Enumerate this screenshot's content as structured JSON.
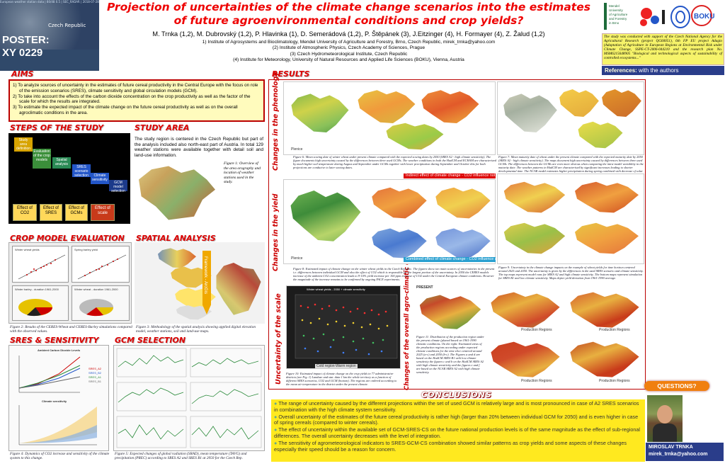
{
  "top_left": {
    "caption": "European weather station data | 80/48 0.5 | SEC_RADAR | 2018-07-28",
    "map_label": "Czech Republic",
    "poster_id": "POSTER: XY 0229"
  },
  "title": "Projection of uncertainties of the climate change scenarios into the estimates of future agroenvironmental conditions and crop yields?",
  "authors": "M. Trnka (1,2), M. Dubrovský (1,2), P. Hlavinka (1), D. Semerádová (1,2), P. Štěpánek (3), J.Eitzinger (4), H. Formayer (4), Z. Žalud (1,2)",
  "affiliations": [
    "1) Institute of Agrosystems and Bioclimatology, Mendel University of Agriculture and Forestry, Brno, Czech Republic, mirek_trnka@yahoo.com",
    "(2) Institute of Atmospheric Physics, Czech Academy of Sciences, Prague",
    "(3) Czech Hydrometeorological Institute, Czech Republic",
    "(4) Institute for Meteorology, University of Natural Resources and Applied Life Sciences (BOKU), Vienna, Austria"
  ],
  "logos": {
    "mendel": "Mendel University of Agriculture and Forestry in Brno",
    "boku": "BOKU"
  },
  "support_text": "The study was conducted with support of the Czech National Agency for the Agricultural Research (project QG60051), 6th FP EU project Adagio (Adaptation of Agriculture in European Regions at Environmental Risk under Climate Change, SSPE-CT-2006-044210 and the research plan No. MSM6215648905 \"Biological and technological aspects of sustainability of controlled ecosystems...\"",
  "references": {
    "label": "References:",
    "text": "with the authors"
  },
  "sections": {
    "aims": "AIMS",
    "steps": "STEPS OF THE STUDY",
    "area": "STUDY AREA",
    "crop": "CROP MODEL EVALUATION",
    "spatial": "SPATIAL ANALYSIS",
    "sres": "SRES & SENSITIVITY",
    "gcm": "GCM SELECTION",
    "results": "RESULTS",
    "conclusions": "CONCLUSIONS"
  },
  "aims": [
    "1) To analyze sources of uncertainty in the estimates of future cereal productivity in the Central Europe with the focus on role of the emission scenarios (SRES), climate sensitivity and global circulation models (GCM).",
    "2) To take into account the effects of the carbon dioxide concentration on the crop productivity as well as the factor of the scale for which the results are integrated.",
    "3) To estimate the expected impact of the climate change on the future cereal productivity as well as on the overall agroclimatic conditions in the area."
  ],
  "steps": {
    "blocks": [
      "Study area definition",
      "Evaluation of the crop models",
      "Spatial analysis",
      "SRES scenario selection",
      "Climate sensitivity",
      "GCM model selection"
    ],
    "effects": [
      "Effect of CO2",
      "Effect of SRES",
      "Effect of GCMs",
      "Effect of scale"
    ]
  },
  "study_area": {
    "text": "The study region is centered in the Czech Republic but part of the analysis included also north-east part of Austria. In total 129 weather stations were available together with detail soil and land-use information.",
    "figure_caption": "Figure 1: Overview of the area orography and location of weather stations used in the study."
  },
  "crop_model": {
    "caption": "Figure 2: Results of the CERES-Wheat and CERES-Barley simulations compared with the observed values.",
    "chart_titles": [
      "Winter wheat yields",
      "Spring barley yield",
      "Winter barley - duration 1961-2000",
      "Winter wheat - duration 1961-2000"
    ]
  },
  "spatial": {
    "caption": "Figure 3: Methodology of the spatial analysis showing applied digital elevation model, weather stations, soil and land-use maps.",
    "arrow_label": "Framework - ArcGis"
  },
  "sres": {
    "chart1_title": "Ambient Carbon Dioxide Levels",
    "chart2_title": "Climate sensitivity",
    "legend": [
      "SRES_A2",
      "SRES_B2",
      "SRES_A1",
      "SRES_B1"
    ],
    "caption": "Figure 4: Dynamics of CO2 increase and sensitivity of the climate system to this change."
  },
  "gcm": {
    "caption": "Figure 5: Expected changes of global radiation (SRAD), mean temperature (TAVG) and precipitation (PREC) according to SRES A2 and SRES B1 at 2050 for the Czech Rep."
  },
  "results": {
    "side_labels": [
      "Changes in the phenology",
      "Changes in the yield",
      "Uncertainty of the scale",
      "Changes of the overall agro-climatic contions"
    ],
    "map_footer": "Plenice",
    "bar_indirect": "Indirect effect of climate change - CO2 influence not accounted for",
    "bar_combined": "Combined effect of climate change - CO2 influence accounted for",
    "scale_chart_title": "Winter wheat yields - 2050 + climate sensitivity",
    "scale_legend": "Cold region-Warm region",
    "present_label": "PRESENT",
    "region_labels": [
      "Production Regions",
      "Production Regions",
      "Production Regions",
      "Production Regions"
    ],
    "captions": [
      "Figure 6: Mean sowing date of winter wheat under present climate compared with the expected sowing dates by 2050 (SRES A2 - high climate sensitivity). The figure documents high uncertainty caused by the differences between three used GCMs. The weather conditions in both the HadCM and ECHAM are characterized by much higher soil temperature during August and September under GCMs together with lower precipitation during September and October this for both projections are conducive to later sowing dates.",
      "Figure 7: Mean maturity date of wheat under the present climate compared with the expected maturity date by 2050 (SRES A2 - high climate sensitivity). The maps document high uncertainty caused by differences between three used GCMs. The differences between the GCMs are even more obvious when comparing the intra-model variability in the maturity date. The weather patterns in HadCM are characterised by significant increases leading to shorter developmental time. The NCAR model estimates higher precipitation during spring combined with decrease of solar radiation, which results into even longer developmental time than under the present climate.",
      "Figure 8: Estimated impact of climate change on the winter wheat yields in the Czech Republic. The figures show two main sources of uncertainties in the present i.e. differences between individual GCM and also the effect of CO2 which is responsible for the largest portion of the uncertainty. In 2050 the CERES models increase of the ambient CO2 concentration leads to 9-10% yield increase per 100 ppm increase of CO2 under the Central European climate conditions. However the magnitude of the increase remains to be confirmed by ongoing FACE experiments.",
      "Figure 9: Uncertainty in the climate change impacts on the example of wheat yields for time horizon centered around 2025 and 2050. The uncertainty is given by the differences in the used SRES scenario and climate sensitivity. The top maps represent model runs for SRES A2 and high climate sensitivity. The bottom maps represent simulation for SRES B1 and low climate sensitivity. Maps depict yield deviation from 1961-1990 average.",
      "Figure 10: Estimated impact of climate change on the crop yields in 77 administrative districts (see Fig. 1) Landuse and stat. data 1 km the whole territory as a function of different SRES scenarios, CO2 and GCM (bottom). The regions are ordered according to the mean air temperature in the district under the present climate.",
      "Figure 11: Distribution of the production region under the present climate (planed based on 1961-1990 climatic conditions. On the right: Estimated areas of the production regions according under expected climate conditions for the time slice centered around 2025 (a-c) and 2050 (b-c). The Figures a and d are based on the HadCM SRES B1 with low climate sensitivity the figures c and b on the HadCM SRES A2 with high climate sensitivity and the figures e and f are based on the NCAR SRES A2 with high climate sensitivity."
    ]
  },
  "conclusions": [
    "The range of uncertainty caused by the different projections within the set of used GCM is relatively large and is most pronounced in case of A2 SRES scenarios in combination with the high climate system sensitivity.",
    "Overall uncertainty of the estimates of the future cereal productivity is rather high (larger than 20% between individual GCM for 2050) and is even higher in case of spring cereals (compared to winter cereals).",
    "The effect of uncertainty within the available set of GCM-SRES-CS on the future national production levels is of the same magnitude as the effect of sub-regional differences. The overall uncertainty decreases with the level of integration.",
    "The sensitivity of agrometeorological indicators to SRES-GCM-CS combination showed similar patterns as crop yields and some aspects of these changes especially their speed should be a reason for concern."
  ],
  "questions": "QUESTIONS?",
  "contact": {
    "name": "MIROSLAV TRNKA",
    "email": "mirek_trnka@yahoo.com"
  }
}
